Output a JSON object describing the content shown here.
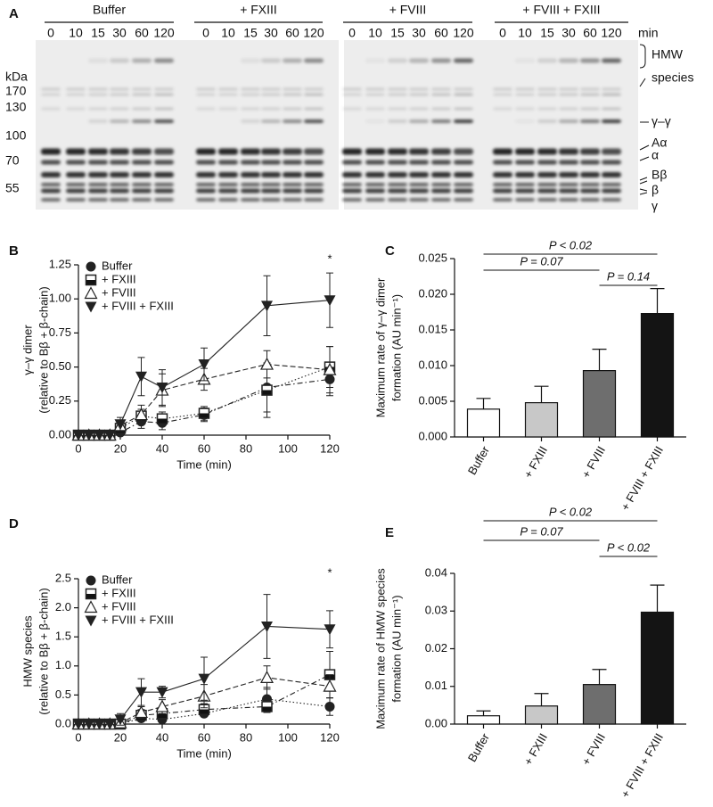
{
  "gel": {
    "panel": "A",
    "groups": [
      {
        "name": "Buffer",
        "lanes": [
          0,
          10,
          15,
          30,
          60,
          120
        ]
      },
      {
        "name": "+ FXIII",
        "lanes": [
          0,
          10,
          15,
          30,
          60,
          120
        ]
      },
      {
        "name": "+ FVIII",
        "lanes": [
          0,
          10,
          15,
          30,
          60,
          120
        ]
      },
      {
        "name": "+ FVIII + FXIII",
        "lanes": [
          0,
          10,
          15,
          30,
          60,
          120
        ]
      }
    ],
    "lane_unit": "min",
    "ladder_title": "kDa",
    "ladder": [
      170,
      130,
      100,
      70,
      55
    ],
    "bands": [
      "HMW",
      "species",
      "γ–γ",
      "Aα",
      "α",
      "Bβ",
      "β",
      "γ"
    ]
  },
  "chart_data": [
    {
      "type": "line",
      "panel": "B",
      "ylabel": [
        "γ–γ dimer",
        "(relative to Bβ + β-chain)"
      ],
      "xlabel": "Time (min)",
      "annotation": "*",
      "x": [
        0,
        5,
        10,
        15,
        20,
        30,
        40,
        60,
        90,
        120
      ],
      "xlim": [
        0,
        120
      ],
      "xticks": [
        0,
        20,
        40,
        60,
        80,
        100,
        120
      ],
      "ylim": [
        0,
        1.25
      ],
      "yticks": [
        {
          "value": 0,
          "label": "0.00"
        },
        {
          "value": 0.25,
          "label": "0.25"
        },
        {
          "value": 0.5,
          "label": "0.50"
        },
        {
          "value": 0.75,
          "label": "0.75"
        },
        {
          "value": 1,
          "label": "1.00"
        },
        {
          "value": 1.25,
          "label": "1.25"
        }
      ],
      "series": [
        {
          "name": "Buffer",
          "color": "#222222",
          "marker": "circle",
          "linestyle": "dashdot",
          "values": [
            0,
            0,
            0,
            0,
            0.02,
            0.1,
            0.09,
            0.15,
            0.35,
            0.41
          ],
          "errors": [
            0,
            0,
            0,
            0,
            0.02,
            0.05,
            0.05,
            0.05,
            0.18,
            0.12
          ]
        },
        {
          "name": "+ FXIII",
          "color": "#222222",
          "marker": "square-half",
          "linestyle": "dotted",
          "values": [
            0,
            0,
            0,
            0,
            0.05,
            0.14,
            0.12,
            0.16,
            0.33,
            0.5
          ],
          "errors": [
            0,
            0,
            0,
            0,
            0.03,
            0.05,
            0.05,
            0.05,
            0.2,
            0.15
          ]
        },
        {
          "name": "+ FVIII",
          "color": "#222222",
          "marker": "triangle-open",
          "linestyle": "dashed",
          "values": [
            0,
            0,
            0,
            0,
            0.07,
            0.15,
            0.33,
            0.41,
            0.52,
            0.48
          ],
          "errors": [
            0,
            0,
            0,
            0,
            0.04,
            0.07,
            0.12,
            0.08,
            0.1,
            0.17
          ]
        },
        {
          "name": "+ FVIII + FXIII",
          "color": "#222222",
          "marker": "triangle-down",
          "linestyle": "solid",
          "values": [
            0,
            0,
            0,
            0,
            0.08,
            0.43,
            0.35,
            0.52,
            0.95,
            0.99
          ],
          "errors": [
            0,
            0,
            0,
            0,
            0.05,
            0.14,
            0.13,
            0.12,
            0.22,
            0.2
          ]
        }
      ]
    },
    {
      "type": "bar",
      "panel": "C",
      "ylabel": [
        "Maximum rate of γ–γ dimer",
        "formation (AU min⁻¹)"
      ],
      "categories": [
        "Buffer",
        "+ FXIII",
        "+ FVIII",
        "+ FVIII + FXIII"
      ],
      "values": [
        0.0039,
        0.0048,
        0.0093,
        0.0173
      ],
      "errors": [
        0.0015,
        0.0023,
        0.003,
        0.0035
      ],
      "colors": [
        "#ffffff",
        "#c8c8c8",
        "#6e6e6e",
        "#141414"
      ],
      "ylim": [
        0,
        0.025
      ],
      "yticks": [
        {
          "value": 0,
          "label": "0.000"
        },
        {
          "value": 0.005,
          "label": "0.005"
        },
        {
          "value": 0.01,
          "label": "0.010"
        },
        {
          "value": 0.015,
          "label": "0.015"
        },
        {
          "value": 0.02,
          "label": "0.020"
        },
        {
          "value": 0.025,
          "label": "0.025"
        }
      ],
      "brackets": [
        {
          "label": "P < 0.02",
          "between": [
            "Buffer",
            "+ FVIII + FXIII"
          ]
        },
        {
          "label": "P = 0.07",
          "between": [
            "Buffer",
            "+ FVIII"
          ]
        },
        {
          "label": "P = 0.14",
          "between": [
            "+ FVIII",
            "+ FVIII + FXIII"
          ]
        }
      ]
    },
    {
      "type": "line",
      "panel": "D",
      "ylabel": [
        "HMW species",
        "(relative to Bβ + β-chain)"
      ],
      "xlabel": "Time (min)",
      "annotation": "*",
      "x": [
        0,
        5,
        10,
        15,
        20,
        30,
        40,
        60,
        90,
        120
      ],
      "xlim": [
        0,
        120
      ],
      "xticks": [
        0,
        20,
        40,
        60,
        80,
        100,
        120
      ],
      "ylim": [
        0,
        2.5
      ],
      "yticks": [
        {
          "value": 0,
          "label": "0.0"
        },
        {
          "value": 0.5,
          "label": "0.5"
        },
        {
          "value": 1,
          "label": "1.0"
        },
        {
          "value": 1.5,
          "label": "1.5"
        },
        {
          "value": 2,
          "label": "2.0"
        },
        {
          "value": 2.5,
          "label": "2.5"
        }
      ],
      "series": [
        {
          "name": "Buffer",
          "color": "#222222",
          "marker": "circle",
          "linestyle": "dotted",
          "values": [
            0,
            0,
            0,
            0,
            0,
            0.1,
            0.08,
            0.18,
            0.43,
            0.3
          ],
          "errors": [
            0,
            0,
            0,
            0,
            0,
            0.05,
            0.05,
            0.05,
            0.2,
            0.15
          ]
        },
        {
          "name": "+ FXIII",
          "color": "#222222",
          "marker": "square-half",
          "linestyle": "dashdot",
          "values": [
            0,
            0,
            0,
            0,
            0,
            0.15,
            0.18,
            0.25,
            0.3,
            0.85
          ],
          "errors": [
            0,
            0,
            0,
            0,
            0,
            0.1,
            0.1,
            0.1,
            0.1,
            0.4
          ]
        },
        {
          "name": "+ FVIII",
          "color": "#222222",
          "marker": "triangle-open",
          "linestyle": "dashed",
          "values": [
            0,
            0,
            0,
            0,
            0.02,
            0.2,
            0.3,
            0.48,
            0.8,
            0.65
          ],
          "errors": [
            0,
            0,
            0,
            0,
            0.05,
            0.1,
            0.12,
            0.2,
            0.2,
            0.2
          ]
        },
        {
          "name": "+ FVIII + FXIII",
          "color": "#222222",
          "marker": "triangle-down",
          "linestyle": "solid",
          "values": [
            0,
            0,
            0,
            0,
            0.08,
            0.55,
            0.55,
            0.78,
            1.68,
            1.63
          ],
          "errors": [
            0,
            0,
            0,
            0,
            0.1,
            0.23,
            0.1,
            0.37,
            0.55,
            0.32
          ]
        }
      ]
    },
    {
      "type": "bar",
      "panel": "E",
      "ylabel": [
        "Maximum rate of HMW species",
        "formation (AU min⁻¹)"
      ],
      "categories": [
        "Buffer",
        "+ FXIII",
        "+ FVIII",
        "+ FVIII + FXIII"
      ],
      "values": [
        0.0022,
        0.0048,
        0.0105,
        0.0297
      ],
      "errors": [
        0.0013,
        0.0033,
        0.004,
        0.0072
      ],
      "colors": [
        "#ffffff",
        "#c8c8c8",
        "#6e6e6e",
        "#141414"
      ],
      "ylim": [
        0,
        0.04
      ],
      "yticks": [
        {
          "value": 0,
          "label": "0.00"
        },
        {
          "value": 0.01,
          "label": "0.01"
        },
        {
          "value": 0.02,
          "label": "0.02"
        },
        {
          "value": 0.03,
          "label": "0.03"
        },
        {
          "value": 0.04,
          "label": "0.04"
        }
      ],
      "brackets": [
        {
          "label": "P < 0.02",
          "between": [
            "Buffer",
            "+ FVIII + FXIII"
          ]
        },
        {
          "label": "P = 0.07",
          "between": [
            "Buffer",
            "+ FVIII"
          ]
        },
        {
          "label": "P < 0.02",
          "between": [
            "+ FVIII",
            "+ FVIII + FXIII"
          ]
        }
      ]
    }
  ]
}
